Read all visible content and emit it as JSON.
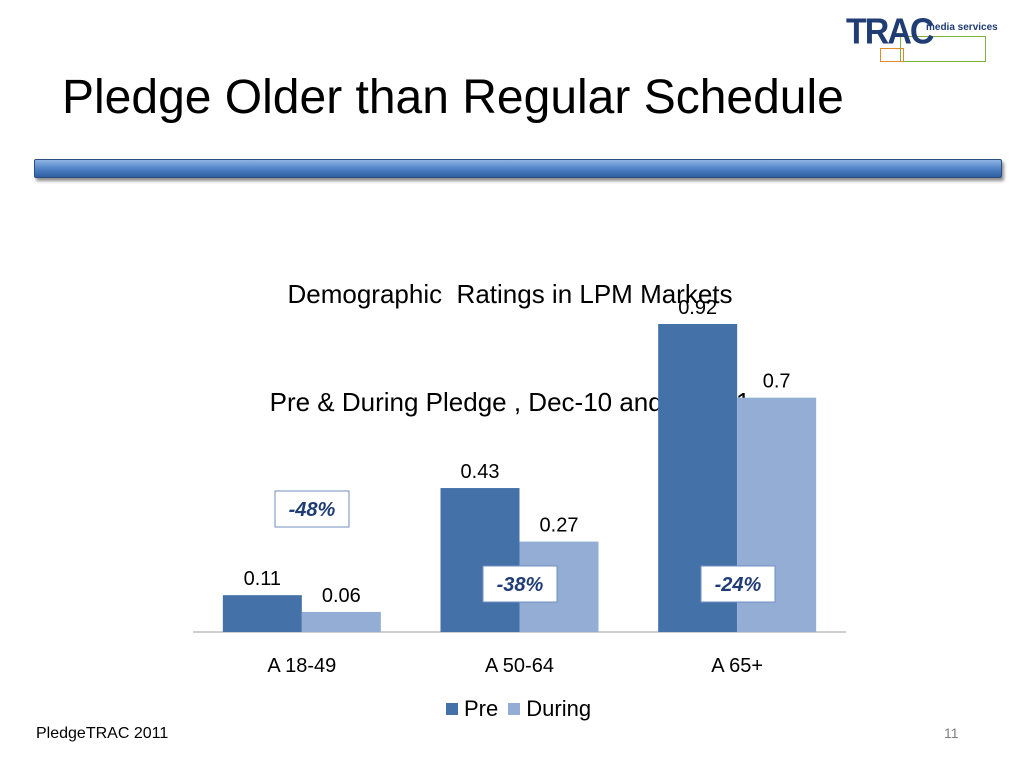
{
  "slide": {
    "title": "Pledge Older than Regular Schedule",
    "footer": "PledgeTRAC 2011",
    "page_number": "11"
  },
  "logo": {
    "brand": "TRAC",
    "tagline": "media services"
  },
  "colors": {
    "pre": "#4472a8",
    "during": "#93add5",
    "annotation_text": "#1f3c74",
    "axis": "#bfbfbf"
  },
  "chart_data": {
    "type": "bar",
    "title": "Demographic  Ratings in LPM Markets",
    "subtitle": "Pre & During Pledge , Dec-10 and Mar-11",
    "categories": [
      "A 18-49",
      "A 50-64",
      "A 65+"
    ],
    "series": [
      {
        "name": "Pre",
        "values": [
          0.11,
          0.43,
          0.92
        ],
        "labels": [
          "0.11",
          "0.43",
          "0.92"
        ]
      },
      {
        "name": "During",
        "values": [
          0.06,
          0.27,
          0.7
        ],
        "labels": [
          "0.06",
          "0.27",
          "0.7"
        ]
      }
    ],
    "annotations": [
      "-48%",
      "-38%",
      "-24%"
    ],
    "ylim": [
      0,
      0.92
    ],
    "grid": false,
    "legend": "bottom",
    "xlabel": "",
    "ylabel": ""
  }
}
